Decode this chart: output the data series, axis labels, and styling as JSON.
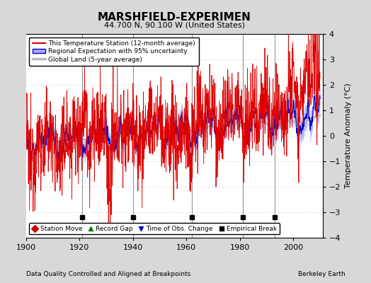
{
  "title": "MARSHFIELD-EXPERIMEN",
  "subtitle": "44.700 N, 90.100 W (United States)",
  "ylabel": "Temperature Anomaly (°C)",
  "footer_left": "Data Quality Controlled and Aligned at Breakpoints",
  "footer_right": "Berkeley Earth",
  "xlim": [
    1900,
    2011
  ],
  "ylim": [
    -4,
    4
  ],
  "yticks": [
    -4,
    -3,
    -2,
    -1,
    0,
    1,
    2,
    3,
    4
  ],
  "xticks": [
    1900,
    1920,
    1940,
    1960,
    1980,
    2000
  ],
  "fig_bg_color": "#d8d8d8",
  "plot_bg_color": "#ffffff",
  "station_color": "#dd0000",
  "regional_color": "#0000cc",
  "regional_fill_color": "#aaaaee",
  "global_color": "#bbbbbb",
  "empirical_break_years": [
    1921,
    1940,
    1962,
    1981,
    1993
  ],
  "vline_color": "#666666",
  "grid_color": "#cccccc",
  "marker_y": -3.2,
  "seed": 12345,
  "n_months": 1320,
  "start_year": 1900
}
